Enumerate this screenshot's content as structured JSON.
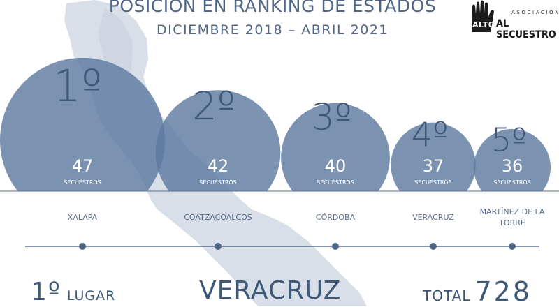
{
  "header": {
    "title": "POSICIÓN EN RANKING DE ESTADOS",
    "subtitle": "DICIEMBRE 2018 – ABRIL 2021"
  },
  "logo": {
    "hand_text": "ALTO",
    "asociacion": "ASOCIACIÓN",
    "name": "AL SECUESTRO"
  },
  "chart_data": {
    "type": "bubble",
    "unit_label": "SECUESTROS",
    "categories": [
      "XALAPA",
      "COATZACOALCOS",
      "CÓRDOBA",
      "VERACRUZ",
      "MARTÍNEZ DE LA TORRE"
    ],
    "ranks": [
      "1º",
      "2º",
      "3º",
      "4º",
      "5º"
    ],
    "values": [
      47,
      42,
      40,
      37,
      36
    ]
  },
  "footer": {
    "place_number": "1º",
    "place_label": "LUGAR",
    "state": "VERACRUZ",
    "total_label": "TOTAL",
    "total_value": "728"
  },
  "colors": {
    "bubble": "#5e7aa0",
    "text_dark": "#3f5878",
    "map": "#d8dee8",
    "line": "#5b6f8c"
  },
  "icons": {
    "logo_hand": "raised-hand-icon"
  }
}
